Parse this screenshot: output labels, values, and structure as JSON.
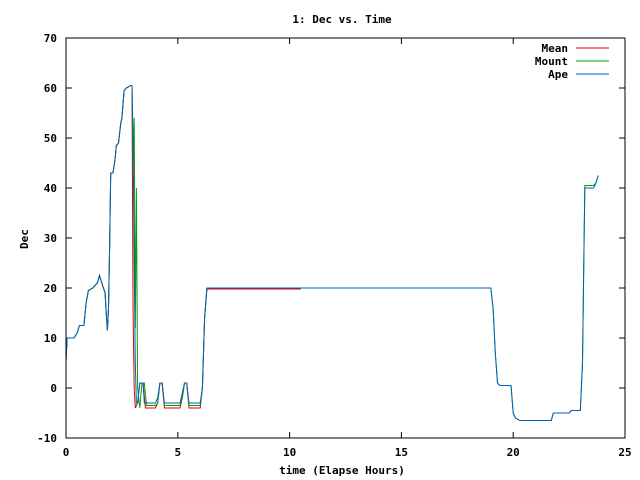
{
  "chart_data": {
    "type": "line",
    "title": "1: Dec vs. Time",
    "xlabel": "time (Elapse Hours)",
    "ylabel": "Dec",
    "xlim": [
      0,
      25
    ],
    "ylim": [
      -10,
      70
    ],
    "xticks": [
      "0",
      "5",
      "10",
      "15",
      "20",
      "25"
    ],
    "yticks": [
      "-10",
      "0",
      "10",
      "20",
      "30",
      "40",
      "50",
      "60",
      "70"
    ],
    "legend_position": "top-right",
    "series": [
      {
        "name": "Mean",
        "color": "#e00000",
        "points": [
          [
            0,
            5.5
          ],
          [
            0.05,
            10
          ],
          [
            0.35,
            10
          ],
          [
            0.5,
            11
          ],
          [
            0.6,
            12.5
          ],
          [
            0.8,
            12.5
          ],
          [
            0.9,
            17
          ],
          [
            1.0,
            19.5
          ],
          [
            1.2,
            20
          ],
          [
            1.4,
            21
          ],
          [
            1.5,
            22.5
          ],
          [
            1.6,
            21
          ],
          [
            1.75,
            19
          ],
          [
            1.8,
            15
          ],
          [
            1.85,
            11.5
          ],
          [
            1.9,
            16
          ],
          [
            1.95,
            28
          ],
          [
            2.0,
            43
          ],
          [
            2.1,
            43
          ],
          [
            2.2,
            46
          ],
          [
            2.25,
            48.5
          ],
          [
            2.35,
            49
          ],
          [
            2.45,
            53
          ],
          [
            2.5,
            54
          ],
          [
            2.6,
            59.5
          ],
          [
            2.7,
            60
          ],
          [
            2.9,
            60.5
          ],
          [
            2.95,
            60.5
          ],
          [
            3.0,
            15
          ],
          [
            3.05,
            0
          ],
          [
            3.1,
            -4
          ],
          [
            3.2,
            -3
          ],
          [
            3.3,
            1
          ],
          [
            3.45,
            1
          ],
          [
            3.55,
            -4
          ],
          [
            4.0,
            -4
          ],
          [
            4.1,
            -3
          ],
          [
            4.2,
            1
          ],
          [
            4.3,
            1
          ],
          [
            4.4,
            -4
          ],
          [
            5.1,
            -4
          ],
          [
            5.2,
            -2
          ],
          [
            5.3,
            1
          ],
          [
            5.4,
            1
          ],
          [
            5.5,
            -4
          ],
          [
            6.0,
            -4
          ],
          [
            6.1,
            0
          ],
          [
            6.2,
            14
          ],
          [
            6.3,
            19.8
          ],
          [
            10.5,
            19.8
          ]
        ]
      },
      {
        "name": "Mount",
        "color": "#00a000",
        "points": [
          [
            0,
            5.5
          ],
          [
            0.05,
            10
          ],
          [
            0.35,
            10
          ],
          [
            0.5,
            11
          ],
          [
            0.6,
            12.5
          ],
          [
            0.8,
            12.5
          ],
          [
            0.9,
            17
          ],
          [
            1.0,
            19.5
          ],
          [
            1.2,
            20
          ],
          [
            1.4,
            21
          ],
          [
            1.5,
            22.5
          ],
          [
            1.6,
            21
          ],
          [
            1.75,
            19
          ],
          [
            1.8,
            15
          ],
          [
            1.85,
            11.5
          ],
          [
            1.9,
            16
          ],
          [
            1.95,
            28
          ],
          [
            2.0,
            43
          ],
          [
            2.1,
            43
          ],
          [
            2.2,
            46
          ],
          [
            2.25,
            48.5
          ],
          [
            2.35,
            49
          ],
          [
            2.45,
            53
          ],
          [
            2.5,
            54
          ],
          [
            2.6,
            59.5
          ],
          [
            2.7,
            60
          ],
          [
            2.9,
            60.5
          ],
          [
            2.95,
            60.5
          ],
          [
            3.0,
            44
          ],
          [
            3.05,
            54
          ],
          [
            3.1,
            12
          ],
          [
            3.15,
            40
          ],
          [
            3.2,
            0
          ],
          [
            3.3,
            -4
          ],
          [
            3.4,
            1
          ],
          [
            3.5,
            1
          ],
          [
            3.6,
            -3.5
          ],
          [
            4.0,
            -3.5
          ],
          [
            4.1,
            -3
          ],
          [
            4.2,
            1
          ],
          [
            4.3,
            1
          ],
          [
            4.4,
            -3.5
          ],
          [
            5.1,
            -3.5
          ],
          [
            5.2,
            -2
          ],
          [
            5.3,
            1
          ],
          [
            5.4,
            1
          ],
          [
            5.5,
            -3.5
          ],
          [
            6.0,
            -3.5
          ],
          [
            6.1,
            0
          ],
          [
            6.2,
            14
          ],
          [
            6.3,
            20
          ],
          [
            19.0,
            20
          ],
          [
            19.1,
            16
          ],
          [
            19.2,
            7
          ],
          [
            19.3,
            1
          ],
          [
            19.4,
            0.5
          ],
          [
            19.9,
            0.5
          ],
          [
            20.0,
            -5
          ],
          [
            20.1,
            -6
          ],
          [
            20.3,
            -6.5
          ],
          [
            21.7,
            -6.5
          ],
          [
            21.8,
            -5
          ],
          [
            22.5,
            -5
          ],
          [
            22.6,
            -4.5
          ],
          [
            23.0,
            -4.5
          ],
          [
            23.1,
            5
          ],
          [
            23.15,
            22
          ],
          [
            23.2,
            40.5
          ],
          [
            23.6,
            40.5
          ],
          [
            23.7,
            41
          ],
          [
            23.8,
            42.5
          ]
        ]
      },
      {
        "name": "Ape",
        "color": "#0060c0",
        "points": [
          [
            0,
            5.5
          ],
          [
            0.05,
            10
          ],
          [
            0.35,
            10
          ],
          [
            0.5,
            11
          ],
          [
            0.6,
            12.5
          ],
          [
            0.8,
            12.5
          ],
          [
            0.9,
            17
          ],
          [
            1.0,
            19.5
          ],
          [
            1.2,
            20
          ],
          [
            1.4,
            21
          ],
          [
            1.5,
            22.5
          ],
          [
            1.6,
            21
          ],
          [
            1.75,
            19
          ],
          [
            1.8,
            15
          ],
          [
            1.85,
            11.5
          ],
          [
            1.9,
            16
          ],
          [
            1.95,
            28
          ],
          [
            2.0,
            43
          ],
          [
            2.1,
            43
          ],
          [
            2.2,
            46
          ],
          [
            2.25,
            48.5
          ],
          [
            2.35,
            49
          ],
          [
            2.45,
            53
          ],
          [
            2.5,
            54
          ],
          [
            2.6,
            59.5
          ],
          [
            2.7,
            60
          ],
          [
            2.9,
            60.5
          ],
          [
            2.95,
            60.5
          ],
          [
            3.0,
            50
          ],
          [
            3.05,
            25
          ],
          [
            3.1,
            5
          ],
          [
            3.15,
            -3
          ],
          [
            3.2,
            -3
          ],
          [
            3.3,
            1
          ],
          [
            3.45,
            1
          ],
          [
            3.5,
            -3
          ],
          [
            4.0,
            -3
          ],
          [
            4.1,
            -2
          ],
          [
            4.2,
            1
          ],
          [
            4.3,
            1
          ],
          [
            4.4,
            -3
          ],
          [
            5.1,
            -3
          ],
          [
            5.2,
            -1
          ],
          [
            5.3,
            1
          ],
          [
            5.4,
            1
          ],
          [
            5.5,
            -3
          ],
          [
            6.0,
            -3
          ],
          [
            6.1,
            0
          ],
          [
            6.2,
            14
          ],
          [
            6.3,
            20
          ],
          [
            19.0,
            20
          ],
          [
            19.1,
            16
          ],
          [
            19.2,
            7
          ],
          [
            19.3,
            1
          ],
          [
            19.4,
            0.5
          ],
          [
            19.9,
            0.5
          ],
          [
            20.0,
            -5
          ],
          [
            20.1,
            -6
          ],
          [
            20.3,
            -6.5
          ],
          [
            21.7,
            -6.5
          ],
          [
            21.8,
            -5
          ],
          [
            22.5,
            -5
          ],
          [
            22.6,
            -4.5
          ],
          [
            23.0,
            -4.5
          ],
          [
            23.1,
            5
          ],
          [
            23.15,
            22
          ],
          [
            23.2,
            40
          ],
          [
            23.6,
            40
          ],
          [
            23.7,
            41
          ],
          [
            23.8,
            42.5
          ]
        ]
      }
    ]
  }
}
